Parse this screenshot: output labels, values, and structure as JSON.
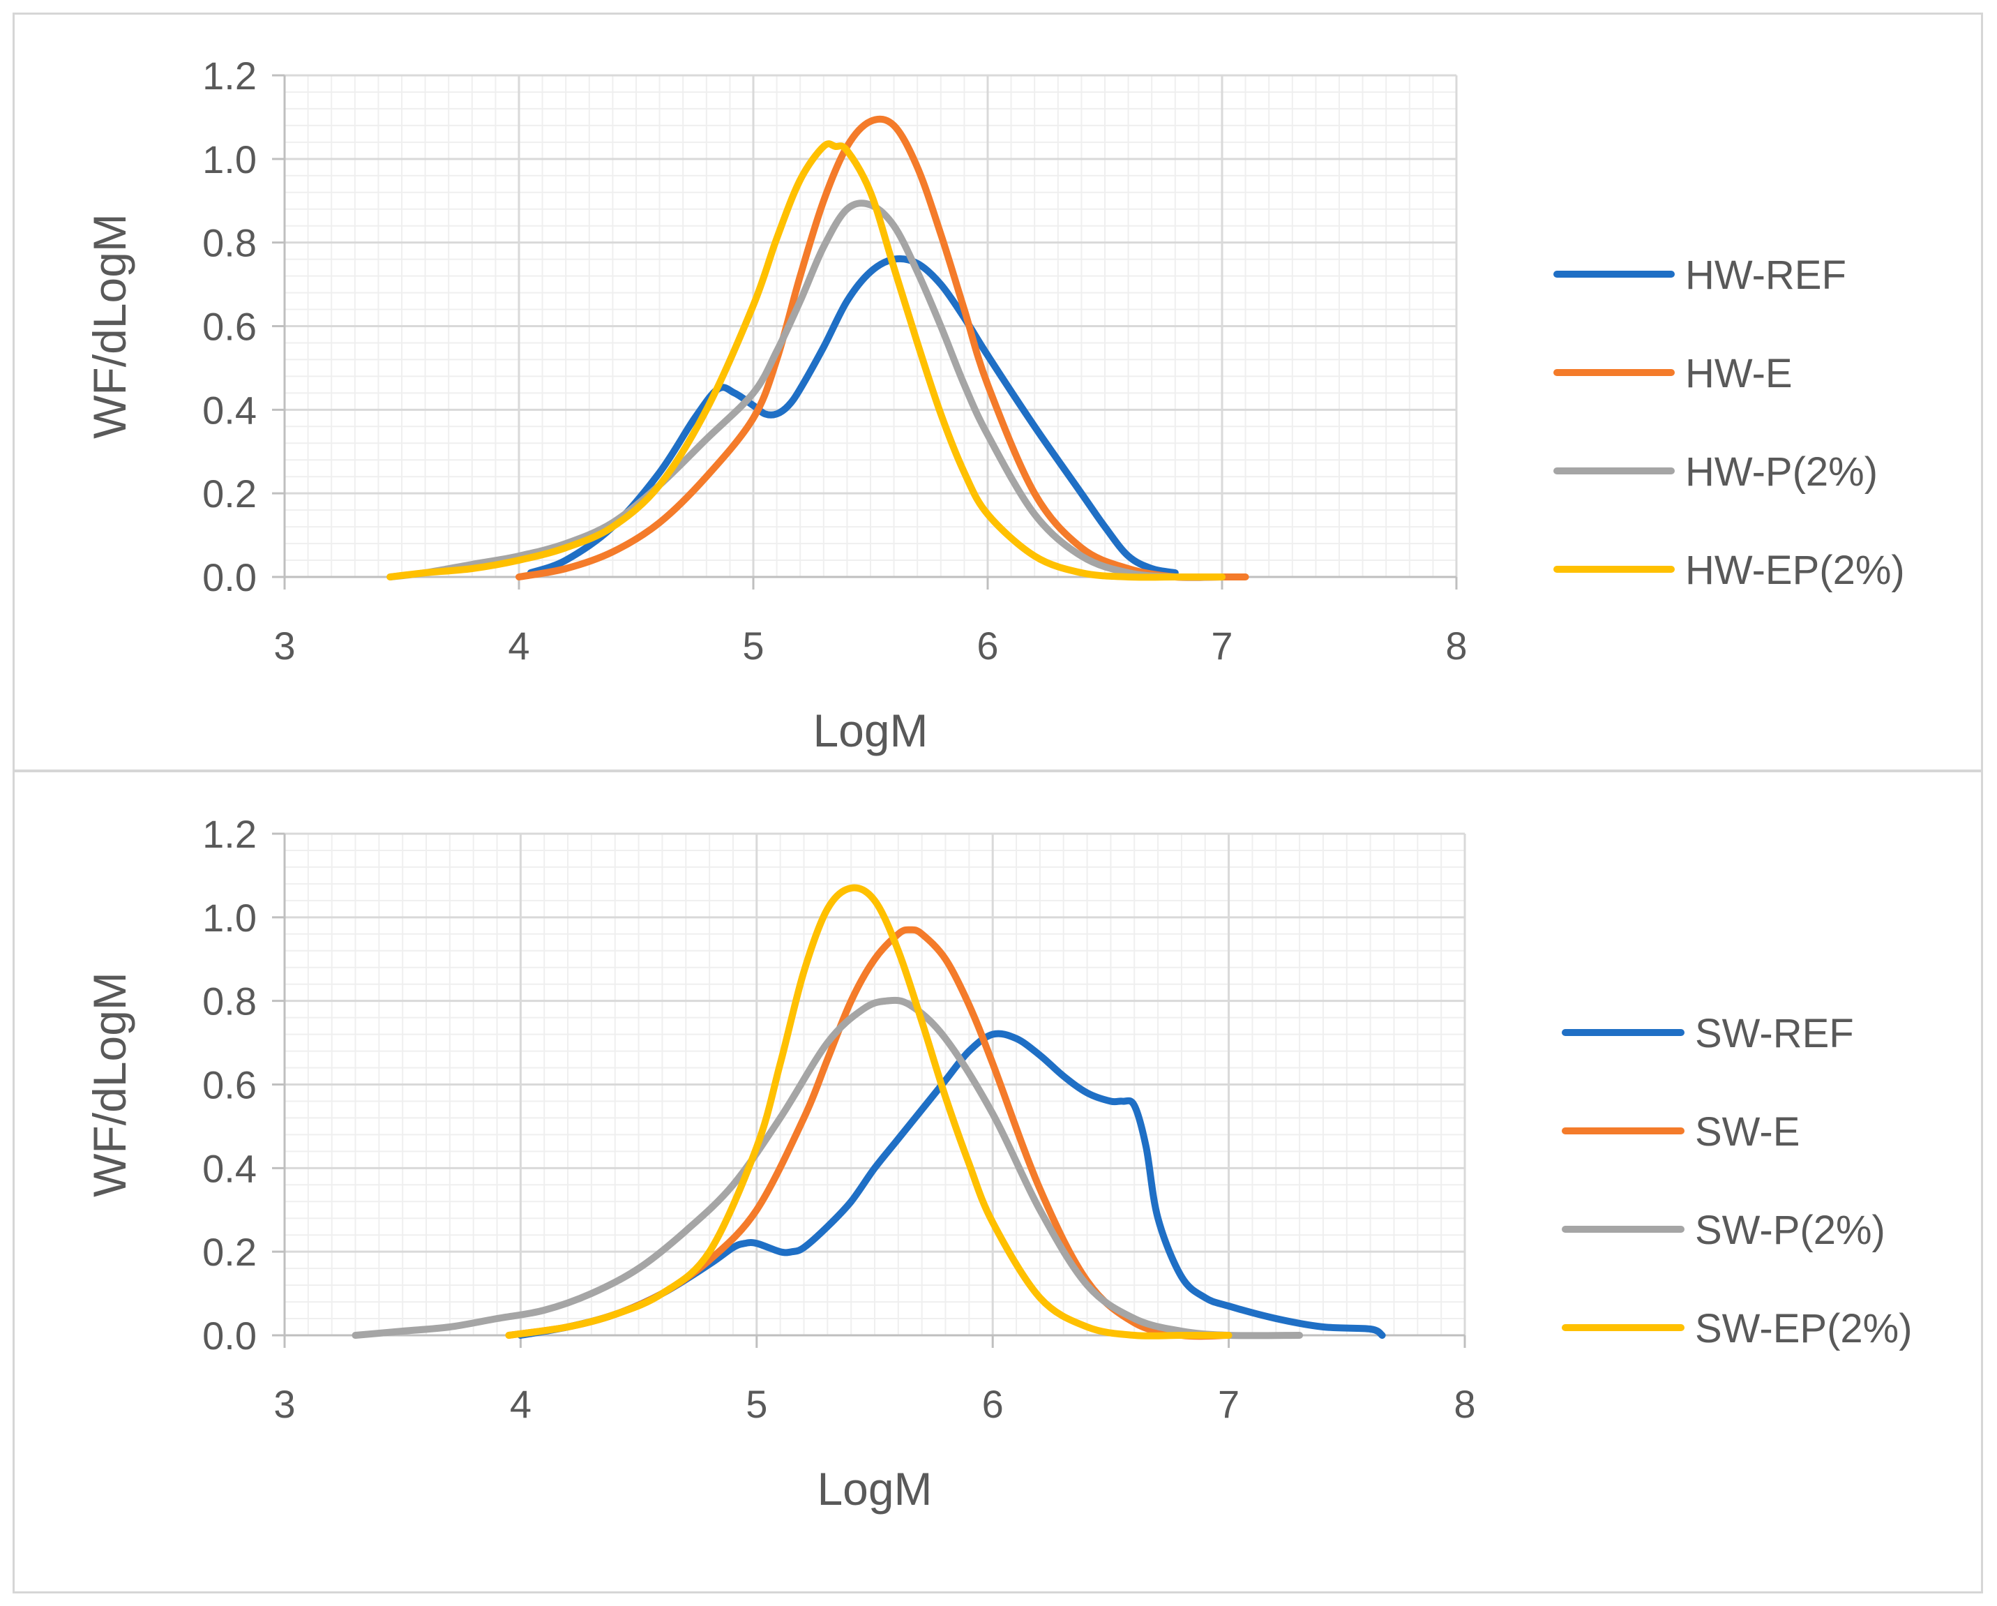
{
  "chart_data": [
    {
      "type": "line",
      "title": "",
      "xlabel": "LogM",
      "ylabel": "WF/dLogM",
      "xlim": [
        3,
        8
      ],
      "ylim": [
        0,
        1.2
      ],
      "xticks": [
        "3",
        "4",
        "5",
        "6",
        "7",
        "8"
      ],
      "yticks": [
        "0.0",
        "0.2",
        "0.4",
        "0.6",
        "0.8",
        "1.0",
        "1.2"
      ],
      "grid": true,
      "legend": "right",
      "series": [
        {
          "name": "HW-REF",
          "color": "#1F6FC5",
          "x": [
            4.05,
            4.2,
            4.4,
            4.6,
            4.75,
            4.85,
            4.92,
            5.0,
            5.05,
            5.1,
            5.15,
            5.2,
            5.3,
            5.4,
            5.5,
            5.6,
            5.7,
            5.8,
            5.9,
            6.0,
            6.2,
            6.4,
            6.5,
            6.6,
            6.7,
            6.8
          ],
          "y": [
            0.01,
            0.04,
            0.12,
            0.25,
            0.38,
            0.45,
            0.44,
            0.41,
            0.39,
            0.39,
            0.41,
            0.45,
            0.55,
            0.66,
            0.73,
            0.76,
            0.75,
            0.7,
            0.62,
            0.53,
            0.36,
            0.2,
            0.12,
            0.05,
            0.02,
            0.01
          ]
        },
        {
          "name": "HW-E",
          "color": "#F47B2A",
          "x": [
            4.0,
            4.2,
            4.4,
            4.6,
            4.8,
            5.0,
            5.1,
            5.2,
            5.3,
            5.4,
            5.5,
            5.6,
            5.7,
            5.8,
            5.9,
            6.0,
            6.2,
            6.4,
            6.6,
            6.8,
            7.0,
            7.1
          ],
          "y": [
            0.0,
            0.02,
            0.06,
            0.13,
            0.24,
            0.38,
            0.52,
            0.72,
            0.9,
            1.03,
            1.09,
            1.08,
            0.98,
            0.82,
            0.64,
            0.46,
            0.2,
            0.07,
            0.02,
            0.0,
            0.0,
            0.0
          ]
        },
        {
          "name": "HW-P(2%)",
          "color": "#A5A5A5",
          "x": [
            3.45,
            3.6,
            3.8,
            4.0,
            4.2,
            4.4,
            4.6,
            4.8,
            5.0,
            5.1,
            5.2,
            5.3,
            5.4,
            5.5,
            5.6,
            5.7,
            5.8,
            5.9,
            6.0,
            6.2,
            6.4,
            6.6,
            6.8,
            7.0
          ],
          "y": [
            0.0,
            0.01,
            0.03,
            0.05,
            0.08,
            0.13,
            0.22,
            0.33,
            0.44,
            0.54,
            0.66,
            0.79,
            0.88,
            0.89,
            0.84,
            0.73,
            0.6,
            0.46,
            0.34,
            0.15,
            0.05,
            0.01,
            0.0,
            0.0
          ]
        },
        {
          "name": "HW-EP(2%)",
          "color": "#FFC000",
          "x": [
            3.45,
            3.6,
            3.8,
            4.0,
            4.2,
            4.4,
            4.6,
            4.8,
            5.0,
            5.1,
            5.2,
            5.3,
            5.35,
            5.4,
            5.5,
            5.6,
            5.7,
            5.8,
            5.9,
            6.0,
            6.2,
            6.4,
            6.6,
            6.8,
            7.0
          ],
          "y": [
            0.0,
            0.01,
            0.02,
            0.04,
            0.07,
            0.12,
            0.22,
            0.4,
            0.65,
            0.81,
            0.95,
            1.03,
            1.03,
            1.02,
            0.92,
            0.74,
            0.56,
            0.39,
            0.25,
            0.15,
            0.05,
            0.01,
            0.0,
            0.0,
            0.0
          ]
        }
      ]
    },
    {
      "type": "line",
      "title": "",
      "xlabel": "LogM",
      "ylabel": "WF/dLogM",
      "xlim": [
        3,
        8
      ],
      "ylim": [
        0,
        1.2
      ],
      "xticks": [
        "3",
        "4",
        "5",
        "6",
        "7",
        "8"
      ],
      "yticks": [
        "0.0",
        "0.2",
        "0.4",
        "0.6",
        "0.8",
        "1.0",
        "1.2"
      ],
      "grid": true,
      "legend": "right",
      "series": [
        {
          "name": "SW-REF",
          "color": "#1F6FC5",
          "x": [
            4.0,
            4.2,
            4.4,
            4.6,
            4.8,
            4.9,
            4.95,
            5.0,
            5.1,
            5.15,
            5.2,
            5.3,
            5.4,
            5.5,
            5.6,
            5.7,
            5.8,
            5.9,
            6.0,
            6.1,
            6.2,
            6.3,
            6.4,
            6.5,
            6.55,
            6.6,
            6.65,
            6.7,
            6.8,
            6.9,
            7.0,
            7.2,
            7.4,
            7.6,
            7.65
          ],
          "y": [
            0.0,
            0.02,
            0.05,
            0.1,
            0.17,
            0.21,
            0.22,
            0.22,
            0.2,
            0.2,
            0.21,
            0.26,
            0.32,
            0.4,
            0.47,
            0.54,
            0.61,
            0.68,
            0.72,
            0.71,
            0.67,
            0.62,
            0.58,
            0.56,
            0.56,
            0.55,
            0.45,
            0.28,
            0.14,
            0.09,
            0.07,
            0.04,
            0.02,
            0.015,
            0.0
          ]
        },
        {
          "name": "SW-E",
          "color": "#F47B2A",
          "x": [
            3.95,
            4.2,
            4.4,
            4.6,
            4.8,
            5.0,
            5.2,
            5.3,
            5.4,
            5.5,
            5.6,
            5.65,
            5.7,
            5.8,
            5.9,
            6.0,
            6.2,
            6.4,
            6.6,
            6.8,
            7.0
          ],
          "y": [
            0.0,
            0.02,
            0.05,
            0.1,
            0.18,
            0.3,
            0.52,
            0.66,
            0.8,
            0.9,
            0.96,
            0.97,
            0.96,
            0.9,
            0.79,
            0.65,
            0.35,
            0.13,
            0.03,
            0.0,
            0.0
          ]
        },
        {
          "name": "SW-P(2%)",
          "color": "#A5A5A5",
          "x": [
            3.3,
            3.5,
            3.7,
            3.9,
            4.1,
            4.3,
            4.5,
            4.7,
            4.9,
            5.1,
            5.3,
            5.45,
            5.55,
            5.65,
            5.8,
            6.0,
            6.2,
            6.4,
            6.6,
            6.8,
            7.0,
            7.3
          ],
          "y": [
            0.0,
            0.01,
            0.02,
            0.04,
            0.06,
            0.1,
            0.16,
            0.25,
            0.36,
            0.52,
            0.7,
            0.78,
            0.8,
            0.79,
            0.71,
            0.53,
            0.3,
            0.12,
            0.04,
            0.01,
            0.0,
            0.0
          ]
        },
        {
          "name": "SW-EP(2%)",
          "color": "#FFC000",
          "x": [
            3.95,
            4.2,
            4.4,
            4.6,
            4.8,
            5.0,
            5.1,
            5.2,
            5.3,
            5.4,
            5.5,
            5.6,
            5.7,
            5.8,
            5.9,
            6.0,
            6.2,
            6.4,
            6.6,
            6.8,
            7.0
          ],
          "y": [
            0.0,
            0.02,
            0.05,
            0.1,
            0.2,
            0.45,
            0.65,
            0.87,
            1.02,
            1.07,
            1.04,
            0.92,
            0.75,
            0.57,
            0.41,
            0.27,
            0.09,
            0.02,
            0.0,
            0.0,
            0.0
          ]
        }
      ]
    }
  ]
}
